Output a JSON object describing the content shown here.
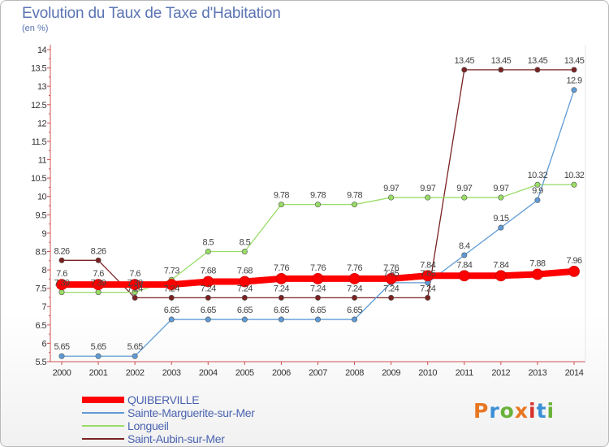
{
  "header": {
    "title": "Evolution du Taux de Taxe d'Habitation",
    "subtitle": "(en %)"
  },
  "logo": {
    "text": "Proxiti",
    "colors": [
      "#e87722",
      "#3a8fd6",
      "#6ab23a",
      "#e87722",
      "#d6302a",
      "#3a8fd6",
      "#6ab23a"
    ]
  },
  "chart_data": {
    "type": "line",
    "title": "Evolution du Taux de Taxe d'Habitation",
    "ylabel": "(en %)",
    "xlabel": "",
    "x": [
      "2000",
      "2001",
      "2002",
      "2003",
      "2004",
      "2005",
      "2006",
      "2007",
      "2008",
      "2009",
      "2010",
      "2011",
      "2012",
      "2013",
      "2014"
    ],
    "ylim": [
      5.5,
      14
    ],
    "yticks": [
      "5.5",
      "6",
      "6.5",
      "7",
      "7.5",
      "8",
      "8.5",
      "9",
      "9.5",
      "10",
      "10.5",
      "11",
      "11.5",
      "12",
      "12.5",
      "13",
      "13.5",
      "14"
    ],
    "grid": false,
    "legend_position": "bottom-left",
    "series": [
      {
        "name": "QUIBERVILLE",
        "color": "#ff0000",
        "values": [
          7.6,
          7.6,
          7.6,
          7.6,
          7.68,
          7.68,
          7.76,
          7.76,
          7.76,
          7.76,
          7.84,
          7.84,
          7.84,
          7.88,
          7.96
        ],
        "labels": [
          "7.6",
          "7.6",
          "7.6",
          "",
          "7.68",
          "7.68",
          "7.76",
          "7.76",
          "7.76",
          "7.76",
          "7.84",
          "7.84",
          "7.84",
          "7.88",
          "7.96"
        ]
      },
      {
        "name": "Sainte-Marguerite-sur-Mer",
        "color": "#5e9bd6",
        "values": [
          5.65,
          5.65,
          5.65,
          6.65,
          6.65,
          6.65,
          6.65,
          6.65,
          6.65,
          7.65,
          7.65,
          8.4,
          9.15,
          9.9,
          12.9
        ],
        "labels": [
          "5.65",
          "5.65",
          "5.65",
          "6.65",
          "6.65",
          "6.65",
          "6.65",
          "6.65",
          "6.65",
          "7.65",
          "7.65",
          "8.4",
          "9.15",
          "9.9",
          "12.9"
        ]
      },
      {
        "name": "Longueil",
        "color": "#99dd66",
        "values": [
          7.39,
          7.39,
          7.39,
          7.73,
          8.5,
          8.5,
          9.78,
          9.78,
          9.78,
          9.97,
          9.97,
          9.97,
          9.97,
          10.32,
          10.32
        ],
        "labels": [
          "7.39",
          "7.39",
          "7.39",
          "7.73",
          "8.5",
          "8.5",
          "9.78",
          "9.78",
          "9.78",
          "9.97",
          "9.97",
          "9.97",
          "9.97",
          "10.32",
          "10.32"
        ]
      },
      {
        "name": "Saint-Aubin-sur-Mer",
        "color": "#7a2222",
        "values": [
          8.26,
          8.26,
          7.24,
          7.24,
          7.24,
          7.24,
          7.24,
          7.24,
          7.24,
          7.24,
          7.24,
          13.45,
          13.45,
          13.45,
          13.45
        ],
        "labels": [
          "8.26",
          "8.26",
          "7.24",
          "7.24",
          "7.24",
          "7.24",
          "7.24",
          "7.24",
          "7.24",
          "7.24",
          "7.24",
          "13.45",
          "13.45",
          "13.45",
          "13.45"
        ]
      }
    ]
  }
}
